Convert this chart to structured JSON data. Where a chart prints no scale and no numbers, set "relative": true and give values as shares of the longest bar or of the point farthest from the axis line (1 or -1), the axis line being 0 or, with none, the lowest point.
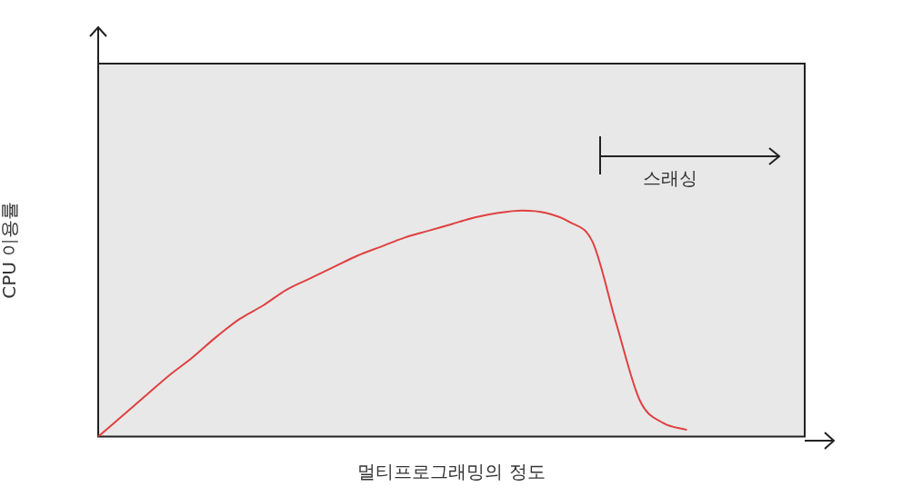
{
  "chart_data": {
    "type": "line",
    "relative": true,
    "xlabel": "멀티프로그래밍의 정도",
    "ylabel": "CPU 이용률",
    "annotations": [
      "스래싱"
    ],
    "categories": [
      null,
      null,
      null,
      null,
      null,
      null,
      null,
      null,
      null,
      null,
      null,
      null,
      null,
      null,
      null,
      null,
      null,
      null,
      null,
      null,
      null,
      null,
      null,
      null,
      null,
      null,
      null,
      null,
      null,
      null,
      null
    ],
    "series": [
      {
        "color": "#e04040",
        "values": [
          0,
          0.09,
          0.18,
          0.27,
          0.35,
          0.44,
          0.52,
          0.58,
          0.65,
          0.7,
          0.75,
          0.8,
          0.84,
          0.88,
          0.91,
          0.94,
          0.97,
          0.99,
          1,
          0.99,
          0.95,
          0.86,
          0.5,
          0.16,
          0.06,
          0.03,
          null,
          null,
          null,
          null,
          null
        ]
      }
    ],
    "grid": false,
    "legend": false,
    "marker": "none",
    "line_style": "solid"
  }
}
